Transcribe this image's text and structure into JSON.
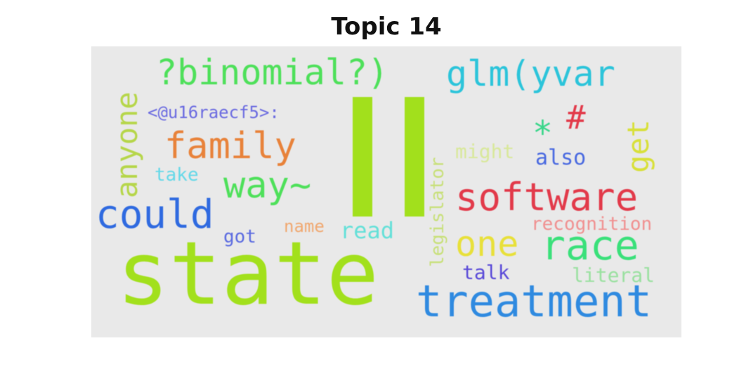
{
  "title": "Topic 14",
  "colors": {
    "background": "#e9e9e9",
    "green_bright": "#a2e01c",
    "blue": "#2f7de0",
    "red": "#e23a4a",
    "orange": "#e8823a",
    "teal": "#3ad6d6"
  },
  "words": {
    "state": "state",
    "treatment": "treatment",
    "software": "software",
    "binomial": "?binomial?)",
    "glm": "glm(yvar",
    "family": "family",
    "could": "could",
    "race": "race",
    "one": "one",
    "way": "way~",
    "anyone": "anyone",
    "get": "get",
    "user_tag": "<@u16raecf5>:",
    "hash": "#",
    "star": "*",
    "recognition": "recognition",
    "legislator": "legislator",
    "read": "read",
    "name": "name",
    "also": "also",
    "might": "might",
    "take": "take",
    "got": "got",
    "talk": "talk",
    "literal": "literal"
  }
}
